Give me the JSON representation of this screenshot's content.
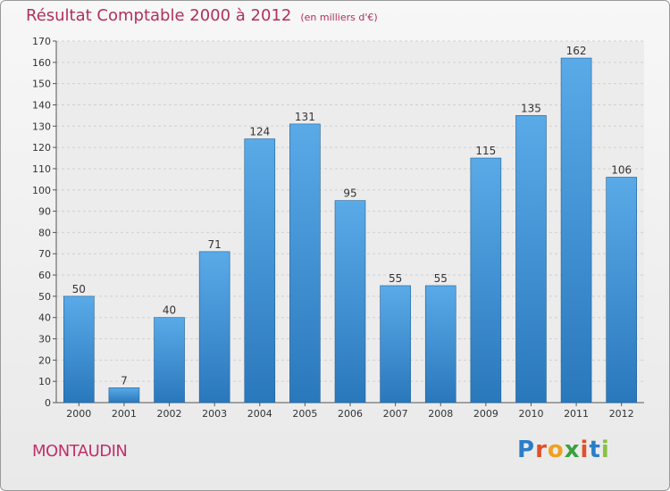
{
  "header": {
    "title": "Résultat Comptable 2000 à 2012",
    "subtitle": "(en milliers d'€)"
  },
  "commune_name": "MONTAUDIN",
  "brand": {
    "letters": [
      "P",
      "r",
      "o",
      "x",
      "i",
      "t",
      "i"
    ],
    "colors": [
      "#2a7ec8",
      "#e0502a",
      "#f0a020",
      "#3aa040",
      "#e0502a",
      "#2a7ec8",
      "#8ac040"
    ]
  },
  "chart_data": {
    "type": "bar",
    "title": "Résultat Comptable 2000 à 2012",
    "subtitle": "(en milliers d'€)",
    "xlabel": "",
    "ylabel": "",
    "categories": [
      "2000",
      "2001",
      "2002",
      "2003",
      "2004",
      "2005",
      "2006",
      "2007",
      "2008",
      "2009",
      "2010",
      "2011",
      "2012"
    ],
    "values": [
      50,
      7,
      40,
      71,
      124,
      131,
      95,
      55,
      55,
      115,
      135,
      162,
      106
    ],
    "data_labels": [
      "50",
      "7",
      "40",
      "71",
      "124",
      "131",
      "95",
      "55",
      "55",
      "115",
      "135",
      "162",
      "106"
    ],
    "ylim": [
      0,
      170
    ],
    "yticks": [
      0,
      10,
      20,
      30,
      40,
      50,
      60,
      70,
      80,
      90,
      100,
      110,
      120,
      130,
      140,
      150,
      160,
      170
    ],
    "grid": true,
    "colors": {
      "bar_light": "#5aaae8",
      "bar_dark": "#2a78bc",
      "grid": "#d0d0d0"
    }
  }
}
